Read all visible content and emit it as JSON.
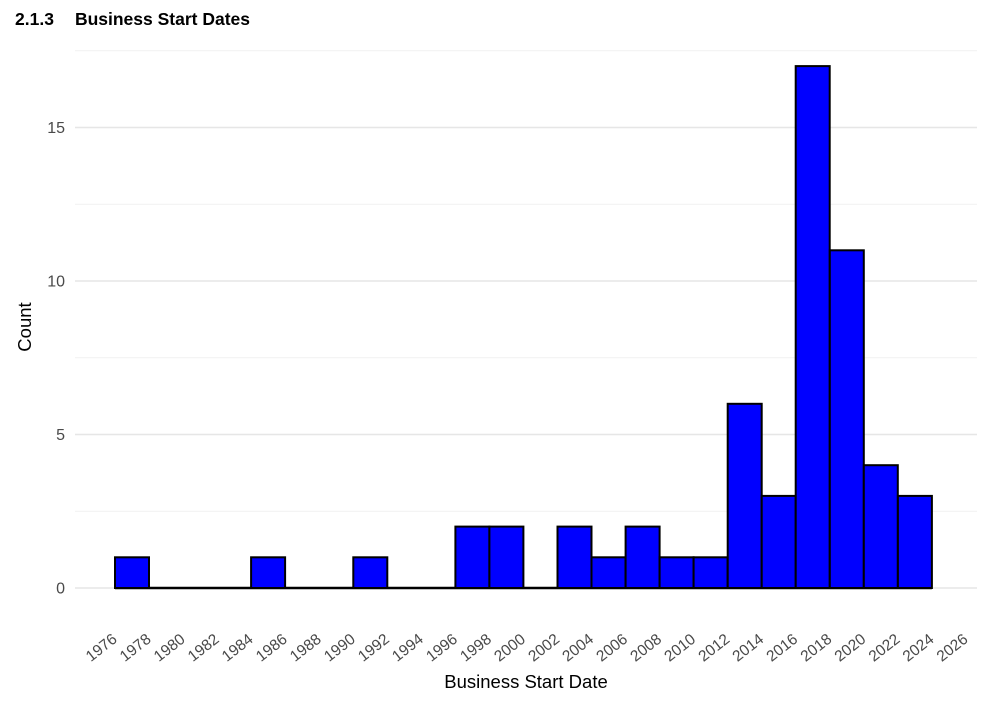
{
  "page": {
    "background_color": "#ffffff"
  },
  "heading": {
    "number": "2.1.3",
    "title": "Business Start Dates"
  },
  "chart_data": {
    "type": "histogram",
    "title": "",
    "xlabel": "Business Start Date",
    "ylabel": "Count",
    "bin_width_years": 2,
    "bin_edges": [
      1976,
      1978,
      1980,
      1982,
      1984,
      1986,
      1988,
      1990,
      1992,
      1994,
      1996,
      1998,
      2000,
      2002,
      2004,
      2006,
      2008,
      2010,
      2012,
      2014,
      2016,
      2018,
      2020,
      2022,
      2024
    ],
    "counts": [
      1,
      0,
      0,
      0,
      1,
      0,
      0,
      1,
      0,
      0,
      2,
      2,
      0,
      2,
      1,
      2,
      1,
      1,
      6,
      3,
      17,
      11,
      4,
      3
    ],
    "total_count": 58,
    "x_tick_labels": [
      1976,
      1978,
      1980,
      1982,
      1984,
      1986,
      1988,
      1990,
      1992,
      1994,
      1996,
      1998,
      2000,
      2002,
      2004,
      2006,
      2008,
      2010,
      2012,
      2014,
      2016,
      2018,
      2020,
      2022,
      2026
    ],
    "x_tick_labels_full": [
      1976,
      1978,
      1980,
      1982,
      1984,
      1986,
      1988,
      1990,
      1992,
      1994,
      1996,
      1998,
      2000,
      2002,
      2004,
      2006,
      2008,
      2010,
      2012,
      2014,
      2016,
      2018,
      2020,
      2022,
      2024,
      2026
    ],
    "y_tick_labels": [
      0,
      5,
      10,
      15
    ],
    "y_minor_gridlines": [
      2.5,
      7.5,
      12.5,
      17.5
    ],
    "xlim": [
      1973.65,
      2026.65
    ],
    "ylim": [
      0,
      17.85
    ],
    "grid": "horizontal-only",
    "legend": "none",
    "x_tick_rotation_deg": -38,
    "styles": {
      "bar_fill": "#0000ff",
      "bar_stroke": "#000000",
      "baseline_color": "#000000",
      "grid_major_color": "#e6e6e6",
      "grid_minor_color": "#f1f1f1",
      "tick_label_color": "#4a4a4a",
      "axis_title_color": "#000000",
      "heading_color": "#000000"
    }
  }
}
